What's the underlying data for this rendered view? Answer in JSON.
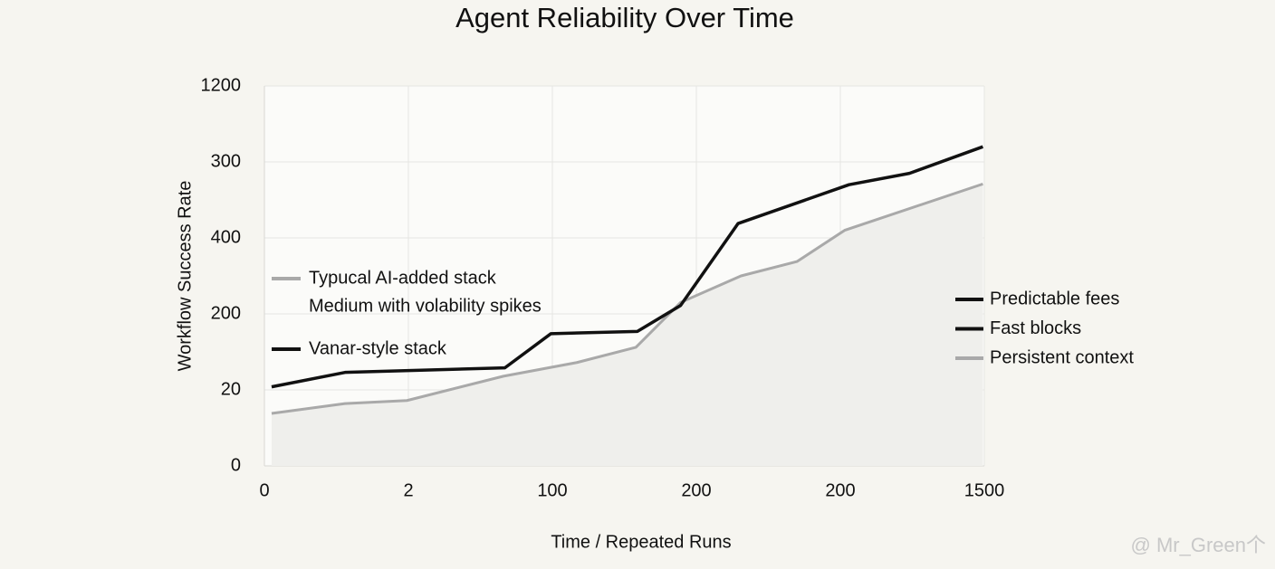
{
  "chart_data": {
    "type": "line",
    "title": "Agent Reliability Over Time",
    "xlabel": "Time / Repeated Runs",
    "ylabel": "Workflow Success Rate",
    "xlim": [
      0,
      5
    ],
    "xticks": [
      0,
      {
        "value": 1,
        "label": "2"
      },
      {
        "value": 2,
        "label": "100"
      },
      {
        "value": 3,
        "label": "200"
      },
      {
        "value": 4,
        "label": "200"
      },
      {
        "value": 5,
        "label": "1500"
      }
    ],
    "ylim": [
      0,
      5
    ],
    "yticks": [
      0,
      {
        "value": 1,
        "label": "20"
      },
      {
        "value": 2,
        "label": "200"
      },
      {
        "value": 3,
        "label": "400"
      },
      {
        "value": 4,
        "label": "300"
      },
      {
        "value": 5,
        "label": "1200"
      }
    ],
    "grid": true,
    "series": [
      {
        "name": "Typucal AI-added stack",
        "description": "Medium with volability spikes",
        "color": "#a9a9a9",
        "area": true,
        "x": [
          0.05,
          0.56,
          0.99,
          1.66,
          2.17,
          2.58,
          2.89,
          3.31,
          3.7,
          4.03,
          4.99
        ],
        "values": [
          0.69,
          0.82,
          0.86,
          1.18,
          1.36,
          1.56,
          2.15,
          2.5,
          2.69,
          3.1,
          3.71
        ]
      },
      {
        "name": "Vanar-style stack",
        "color": "#111111",
        "x": [
          0.05,
          0.56,
          1.67,
          1.99,
          2.59,
          2.89,
          3.29,
          4.06,
          4.48,
          4.99
        ],
        "values": [
          1.04,
          1.23,
          1.29,
          1.74,
          1.77,
          2.11,
          3.19,
          3.7,
          3.85,
          4.2
        ]
      }
    ],
    "annotations": [
      {
        "text": "Predictable fees",
        "color": "#111111"
      },
      {
        "text": "Fast blocks",
        "color": "#111111"
      },
      {
        "text": "Persistent context",
        "color": "#a9a9a9"
      }
    ],
    "watermark": "@ Mr_Green个"
  }
}
